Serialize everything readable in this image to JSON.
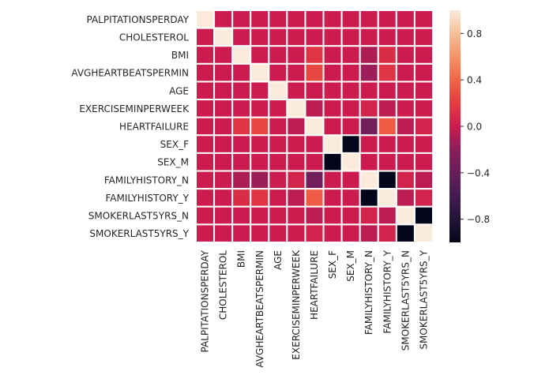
{
  "chart_data": {
    "type": "heatmap",
    "title": "",
    "xlabel": "",
    "ylabel": "",
    "labels": [
      "PALPITATIONSPERDAY",
      "CHOLESTEROL",
      "BMI",
      "AVGHEARTBEATSPERMIN",
      "AGE",
      "EXERCISEMINPERWEEK",
      "HEARTFAILURE",
      "SEX_F",
      "SEX_M",
      "FAMILYHISTORY_N",
      "FAMILYHISTORY_Y",
      "SMOKERLAST5YRS_N",
      "SMOKERLAST5YRS_Y"
    ],
    "values": [
      [
        1.0,
        0.0,
        0.0,
        0.0,
        0.0,
        0.0,
        0.0,
        0.0,
        0.0,
        0.0,
        0.0,
        0.0,
        0.0
      ],
      [
        0.0,
        1.0,
        0.0,
        0.0,
        0.0,
        0.0,
        0.0,
        0.0,
        0.0,
        0.0,
        0.0,
        0.0,
        0.0
      ],
      [
        0.0,
        0.0,
        1.0,
        0.0,
        0.0,
        0.0,
        0.15,
        0.0,
        0.0,
        -0.1,
        0.1,
        0.0,
        0.0
      ],
      [
        0.0,
        0.0,
        0.0,
        1.0,
        0.0,
        0.0,
        0.25,
        0.0,
        0.0,
        -0.15,
        0.15,
        0.0,
        0.0
      ],
      [
        0.0,
        0.0,
        0.0,
        0.0,
        1.0,
        0.0,
        0.0,
        0.0,
        0.0,
        0.0,
        0.0,
        0.0,
        0.0
      ],
      [
        0.0,
        0.0,
        0.0,
        0.0,
        0.0,
        1.0,
        -0.05,
        0.0,
        0.0,
        0.05,
        -0.05,
        0.0,
        0.0
      ],
      [
        0.0,
        0.0,
        0.15,
        0.25,
        0.0,
        -0.05,
        1.0,
        0.0,
        0.0,
        -0.35,
        0.35,
        -0.05,
        0.05
      ],
      [
        0.0,
        0.0,
        0.0,
        0.0,
        0.0,
        0.0,
        0.0,
        1.0,
        -1.0,
        0.0,
        0.0,
        0.0,
        0.0
      ],
      [
        0.0,
        0.0,
        0.0,
        0.0,
        0.0,
        0.0,
        0.0,
        -1.0,
        1.0,
        0.0,
        0.0,
        0.0,
        0.0
      ],
      [
        0.0,
        0.0,
        -0.1,
        -0.15,
        0.0,
        0.05,
        -0.35,
        0.0,
        0.0,
        1.0,
        -1.0,
        0.05,
        -0.05
      ],
      [
        0.0,
        0.0,
        0.1,
        0.15,
        0.0,
        -0.05,
        0.35,
        0.0,
        0.0,
        -1.0,
        1.0,
        -0.05,
        0.05
      ],
      [
        0.0,
        0.0,
        0.0,
        0.0,
        0.0,
        0.0,
        -0.05,
        0.0,
        0.0,
        0.05,
        -0.05,
        1.0,
        -1.0
      ],
      [
        0.0,
        0.0,
        0.0,
        0.0,
        0.0,
        0.0,
        0.05,
        0.0,
        0.0,
        -0.05,
        0.05,
        -1.0,
        1.0
      ]
    ],
    "vmin": -1.0,
    "vmax": 1.0,
    "colormap": "rocket",
    "colorbar": {
      "ticks": [
        0.8,
        0.4,
        0.0,
        -0.4,
        -0.8
      ],
      "tick_labels": [
        "0.8",
        "0.4",
        "0.0",
        "−0.4",
        "−0.8"
      ]
    },
    "cell_border_color": "#ffffff",
    "legend_position": "right"
  }
}
